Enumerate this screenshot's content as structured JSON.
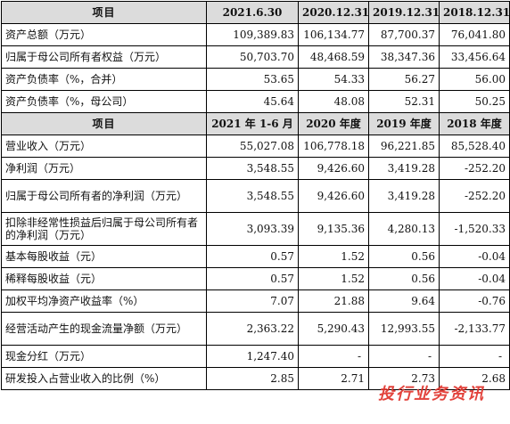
{
  "header1": [
    "项目",
    "2021.6.30",
    "2020.12.31",
    "2019.12.31",
    "2018.12.31"
  ],
  "section1": [
    {
      "label": "资产总额（万元）",
      "values": [
        "109,389.83",
        "106,134.77",
        "87,700.37",
        "76,041.80"
      ]
    },
    {
      "label": "归属于母公司所有者权益（万元）",
      "values": [
        "50,703.70",
        "48,468.59",
        "38,347.36",
        "33,456.64"
      ]
    },
    {
      "label": "资产负债率（%，合并）",
      "values": [
        "53.65",
        "54.33",
        "56.27",
        "56.00"
      ]
    },
    {
      "label": "资产负债率（%，母公司）",
      "values": [
        "45.64",
        "48.08",
        "52.31",
        "50.25"
      ]
    }
  ],
  "header2": [
    "项目",
    "2021 年 1-6 月",
    "2020 年度",
    "2019 年度",
    "2018 年度"
  ],
  "section2": [
    {
      "label": "营业收入（万元）",
      "values": [
        "55,027.08",
        "106,778.18",
        "96,221.85",
        "85,528.40"
      ]
    },
    {
      "label": "净利润（万元）",
      "values": [
        "3,548.55",
        "9,426.60",
        "3,419.28",
        "-252.20"
      ]
    },
    {
      "label": "归属于母公司所有者的净利润（万元）",
      "values": [
        "3,548.55",
        "9,426.60",
        "3,419.28",
        "-252.20"
      ],
      "tall": true
    },
    {
      "label": "扣除非经常性损益后归属于母公司所有者的净利润（万元）",
      "values": [
        "3,093.39",
        "9,135.36",
        "4,280.13",
        "-1,520.33"
      ],
      "tall": true
    },
    {
      "label": "基本每股收益（元）",
      "values": [
        "0.57",
        "1.52",
        "0.56",
        "-0.04"
      ]
    },
    {
      "label": "稀释每股收益（元）",
      "values": [
        "0.57",
        "1.52",
        "0.56",
        "-0.04"
      ]
    },
    {
      "label": "加权平均净资产收益率（%）",
      "values": [
        "7.07",
        "21.88",
        "9.64",
        "-0.76"
      ]
    },
    {
      "label": "经营活动产生的现金流量净额（万元）",
      "values": [
        "2,363.22",
        "5,290.43",
        "12,993.55",
        "-2,133.77"
      ],
      "tall": true
    },
    {
      "label": "现金分红（万元）",
      "values": [
        "1,247.40",
        "-",
        "-",
        "-"
      ]
    },
    {
      "label": "研发投入占营业收入的比例（%）",
      "values": [
        "2.85",
        "2.71",
        "2.73",
        "2.68"
      ]
    }
  ],
  "watermark": "投行业务资讯",
  "watermark_color": "#e0342c"
}
